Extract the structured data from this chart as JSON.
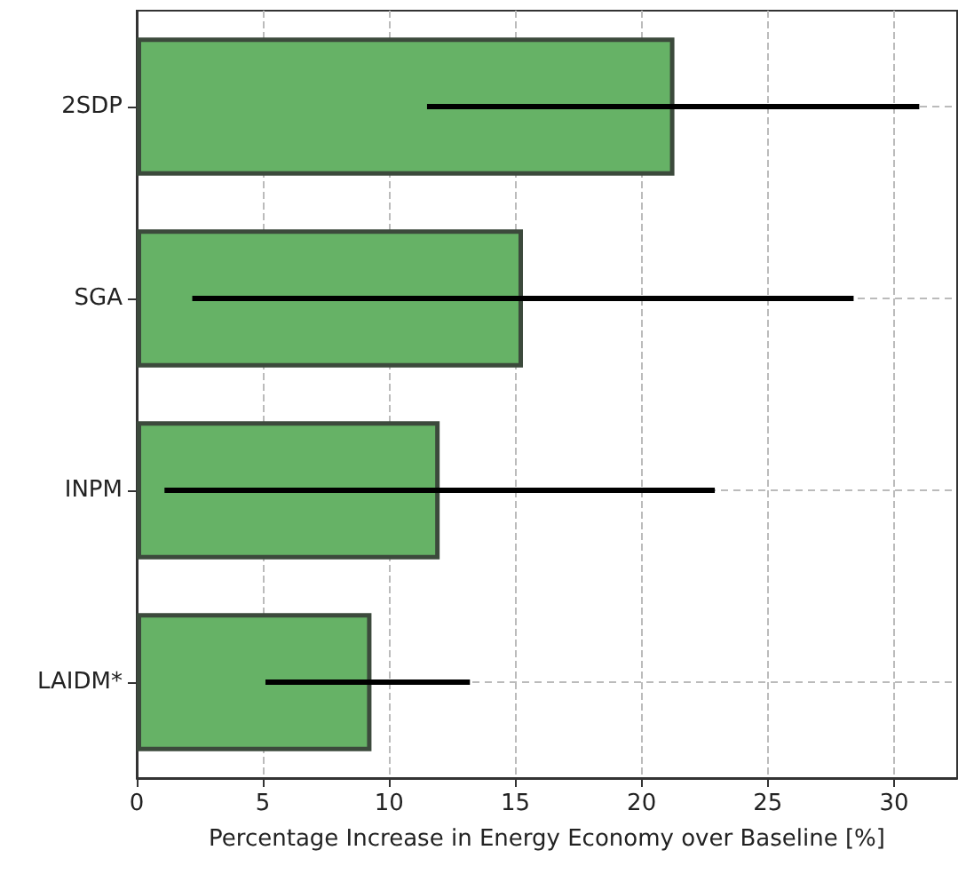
{
  "chart_data": {
    "type": "bar",
    "orientation": "horizontal",
    "xlabel": "Percentage Increase in Energy Economy over Baseline [%]",
    "categories": [
      "2SDP",
      "SGA",
      "INPM",
      "LAIDM*"
    ],
    "values": [
      21.3,
      15.3,
      12.0,
      9.3
    ],
    "errors": [
      [
        11.5,
        31.0
      ],
      [
        2.2,
        28.4
      ],
      [
        1.1,
        22.9
      ],
      [
        5.1,
        13.2
      ]
    ],
    "color": "#66b266",
    "xlim": [
      0,
      32.5
    ],
    "xticks": [
      0,
      5,
      10,
      15,
      20,
      25,
      30
    ],
    "grid": true
  }
}
